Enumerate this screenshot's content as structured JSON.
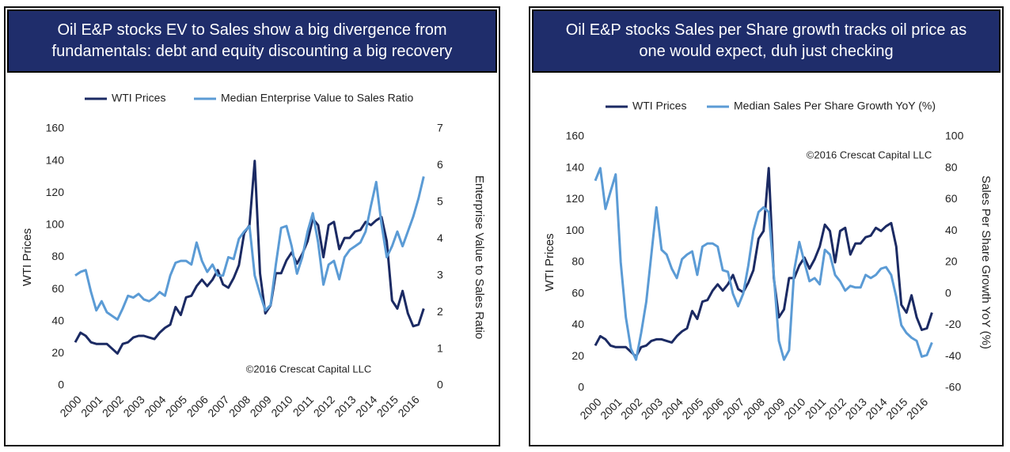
{
  "chart_data": [
    {
      "type": "line",
      "title": "Oil E&P stocks EV to Sales show a big divergence from fundamentals: debt and equity discounting a big recovery",
      "ylabel": "WTI Prices",
      "y2label": "Enterprise Value to Sales Ratio",
      "annotation": "©2016 Crescat Capital LLC",
      "x": [
        2000,
        2000.25,
        2000.5,
        2000.75,
        2001,
        2001.25,
        2001.5,
        2001.75,
        2002,
        2002.25,
        2002.5,
        2002.75,
        2003,
        2003.25,
        2003.5,
        2003.75,
        2004,
        2004.25,
        2004.5,
        2004.75,
        2005,
        2005.25,
        2005.5,
        2005.75,
        2006,
        2006.25,
        2006.5,
        2006.75,
        2007,
        2007.25,
        2007.5,
        2007.75,
        2008,
        2008.25,
        2008.5,
        2008.75,
        2009,
        2009.25,
        2009.5,
        2009.75,
        2010,
        2010.25,
        2010.5,
        2010.75,
        2011,
        2011.25,
        2011.5,
        2011.75,
        2012,
        2012.25,
        2012.5,
        2012.75,
        2013,
        2013.25,
        2013.5,
        2013.75,
        2014,
        2014.25,
        2014.5,
        2014.75,
        2015,
        2015.25,
        2015.5,
        2015.75,
        2016,
        2016.25,
        2016.5
      ],
      "series": [
        {
          "name": "WTI Prices",
          "color": "#1b2a63",
          "axis": "y",
          "values": [
            27,
            33,
            31,
            27,
            26,
            26,
            26,
            23,
            20,
            26,
            27,
            30,
            31,
            31,
            30,
            29,
            33,
            36,
            38,
            49,
            44,
            55,
            56,
            62,
            66,
            62,
            66,
            72,
            63,
            61,
            67,
            75,
            95,
            100,
            140,
            70,
            45,
            50,
            70,
            70,
            78,
            83,
            76,
            82,
            90,
            104,
            100,
            80,
            100,
            102,
            85,
            92,
            92,
            96,
            97,
            102,
            100,
            103,
            105,
            90,
            53,
            48,
            59,
            45,
            37,
            38,
            48
          ]
        },
        {
          "name": "Median Enterprise Value to Sales Ratio",
          "color": "#5b9bd5",
          "axis": "y2",
          "values": [
            3.0,
            3.1,
            3.15,
            2.55,
            2.05,
            2.3,
            2.0,
            1.9,
            1.8,
            2.1,
            2.45,
            2.4,
            2.5,
            2.35,
            2.3,
            2.4,
            2.55,
            2.45,
            3.0,
            3.35,
            3.4,
            3.4,
            3.3,
            3.9,
            3.4,
            3.1,
            3.3,
            3.0,
            3.0,
            3.5,
            3.45,
            4.0,
            4.2,
            4.35,
            3.0,
            2.5,
            2.05,
            2.2,
            3.3,
            4.3,
            4.35,
            3.8,
            3.05,
            3.5,
            4.2,
            4.7,
            3.9,
            2.75,
            3.3,
            3.4,
            2.9,
            3.5,
            3.7,
            3.8,
            3.9,
            4.2,
            4.9,
            5.55,
            4.4,
            3.5,
            3.8,
            4.2,
            3.8,
            4.2,
            4.6,
            5.1,
            5.7
          ]
        }
      ],
      "xlim": [
        2000,
        2016.6
      ],
      "xticks": [
        2000,
        2001,
        2002,
        2003,
        2004,
        2005,
        2006,
        2007,
        2008,
        2009,
        2010,
        2011,
        2012,
        2013,
        2014,
        2015,
        2016
      ],
      "ylim": [
        0,
        160
      ],
      "yticks": [
        0,
        20,
        40,
        60,
        80,
        100,
        120,
        140,
        160
      ],
      "y2lim": [
        0,
        7
      ],
      "y2ticks": [
        0,
        1,
        2,
        3,
        4,
        5,
        6,
        7
      ],
      "grid": false,
      "legend": "top"
    },
    {
      "type": "line",
      "title": "Oil E&P stocks Sales per Share growth tracks oil price as one would expect, duh just checking",
      "ylabel": "WTI Prices",
      "y2label": "Sales Per Share Growth YoY (%)",
      "annotation": "©2016 Crescat Capital LLC",
      "x": [
        2000,
        2000.25,
        2000.5,
        2000.75,
        2001,
        2001.25,
        2001.5,
        2001.75,
        2002,
        2002.25,
        2002.5,
        2002.75,
        2003,
        2003.25,
        2003.5,
        2003.75,
        2004,
        2004.25,
        2004.5,
        2004.75,
        2005,
        2005.25,
        2005.5,
        2005.75,
        2006,
        2006.25,
        2006.5,
        2006.75,
        2007,
        2007.25,
        2007.5,
        2007.75,
        2008,
        2008.25,
        2008.5,
        2008.75,
        2009,
        2009.25,
        2009.5,
        2009.75,
        2010,
        2010.25,
        2010.5,
        2010.75,
        2011,
        2011.25,
        2011.5,
        2011.75,
        2012,
        2012.25,
        2012.5,
        2012.75,
        2013,
        2013.25,
        2013.5,
        2013.75,
        2014,
        2014.25,
        2014.5,
        2014.75,
        2015,
        2015.25,
        2015.5,
        2015.75,
        2016,
        2016.25,
        2016.5
      ],
      "series": [
        {
          "name": "WTI Prices",
          "color": "#1b2a63",
          "axis": "y",
          "values": [
            27,
            33,
            31,
            27,
            26,
            26,
            26,
            23,
            20,
            26,
            27,
            30,
            31,
            31,
            30,
            29,
            33,
            36,
            38,
            49,
            44,
            55,
            56,
            62,
            66,
            62,
            66,
            72,
            63,
            61,
            67,
            75,
            95,
            100,
            140,
            70,
            45,
            50,
            70,
            70,
            78,
            83,
            76,
            82,
            90,
            104,
            100,
            80,
            100,
            102,
            85,
            92,
            92,
            96,
            97,
            102,
            100,
            103,
            105,
            90,
            53,
            48,
            59,
            45,
            37,
            38,
            48
          ]
        },
        {
          "name": "Median Sales Per Share Growth YoY (%)",
          "color": "#5b9bd5",
          "axis": "y2",
          "values": [
            72,
            80,
            54,
            65,
            76,
            20,
            -15,
            -35,
            -42,
            -25,
            -5,
            25,
            55,
            28,
            25,
            16,
            10,
            22,
            25,
            27,
            12,
            30,
            32,
            32,
            30,
            15,
            14,
            0,
            -8,
            0,
            18,
            40,
            52,
            55,
            52,
            12,
            -30,
            -42,
            -36,
            15,
            33,
            20,
            8,
            10,
            6,
            28,
            25,
            12,
            8,
            2,
            5,
            4,
            4,
            12,
            10,
            12,
            16,
            17,
            12,
            -2,
            -20,
            -25,
            -28,
            -30,
            -40,
            -39,
            -31
          ]
        }
      ],
      "xlim": [
        2000,
        2016.6
      ],
      "xticks": [
        2000,
        2001,
        2002,
        2003,
        2004,
        2005,
        2006,
        2007,
        2008,
        2009,
        2010,
        2011,
        2012,
        2013,
        2014,
        2015,
        2016
      ],
      "ylim": [
        0,
        160
      ],
      "yticks": [
        0,
        20,
        40,
        60,
        80,
        100,
        120,
        140,
        160
      ],
      "y2lim": [
        -60,
        100
      ],
      "y2ticks": [
        -60,
        -40,
        -20,
        0,
        20,
        40,
        60,
        80,
        100
      ],
      "grid": false,
      "legend": "top"
    }
  ]
}
